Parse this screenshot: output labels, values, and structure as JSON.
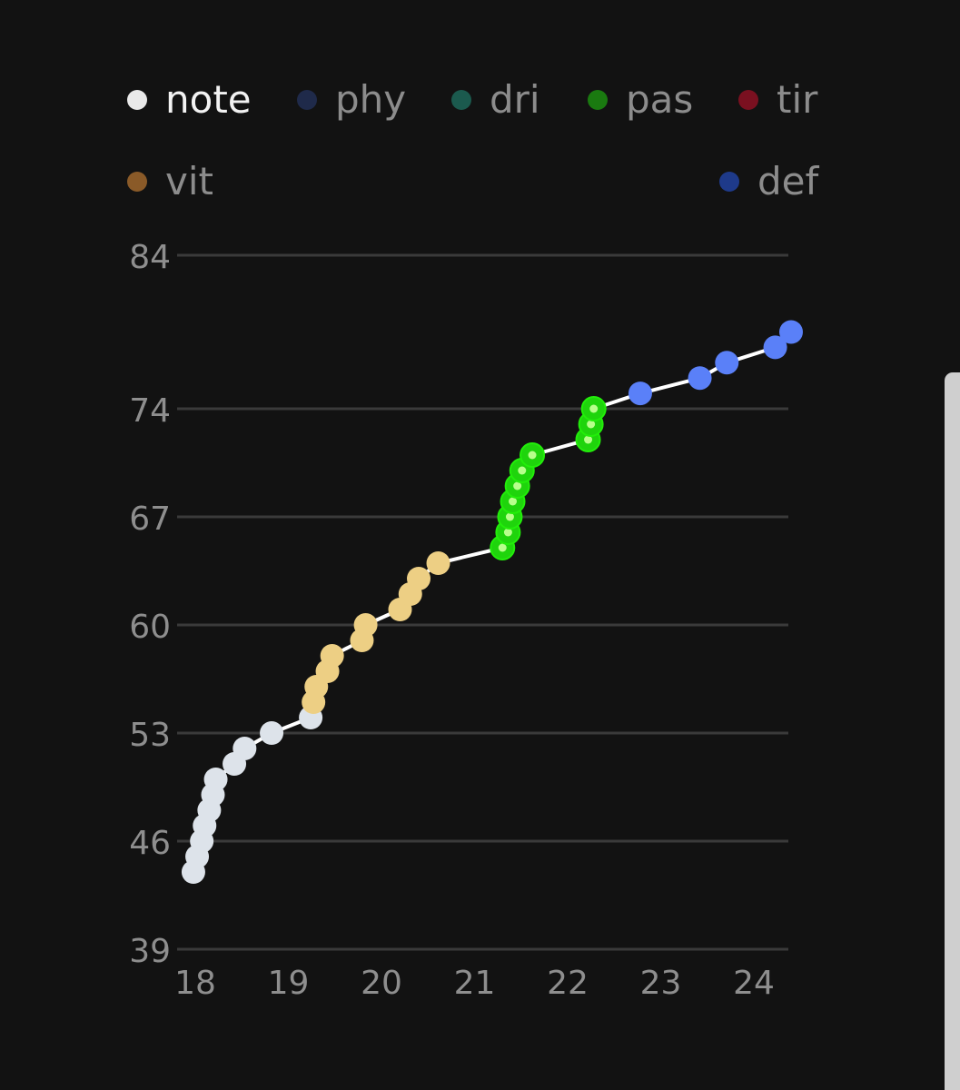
{
  "legend": {
    "items": [
      {
        "label": "note",
        "color": "#e9e9e9",
        "active": true
      },
      {
        "label": "phy",
        "color": "#1f2a4a",
        "active": false
      },
      {
        "label": "dri",
        "color": "#1b5a4e",
        "active": false
      },
      {
        "label": "pas",
        "color": "#1a7a10",
        "active": false
      },
      {
        "label": "tir",
        "color": "#7a1020",
        "active": false
      },
      {
        "label": "vit",
        "color": "#8a5a28",
        "active": false
      },
      {
        "label": "def",
        "color": "#1e3a8a",
        "active": false
      }
    ]
  },
  "chart_data": {
    "type": "line",
    "title": "",
    "xlabel": "",
    "ylabel": "",
    "x_ticks": [
      18,
      19,
      20,
      21,
      22,
      23,
      24
    ],
    "y_ticks": [
      39,
      46,
      53,
      60,
      67,
      74,
      84
    ],
    "xlim": [
      17.96,
      24.4
    ],
    "grid": true,
    "legend_position": "top",
    "line_color": "#ffffff",
    "series": [
      {
        "name": "note",
        "color": "#dde3ea",
        "style": "solid",
        "points": [
          {
            "x": 17.98,
            "y": 44
          },
          {
            "x": 18.02,
            "y": 45
          },
          {
            "x": 18.07,
            "y": 46
          },
          {
            "x": 18.1,
            "y": 47
          },
          {
            "x": 18.15,
            "y": 48
          },
          {
            "x": 18.19,
            "y": 49
          },
          {
            "x": 18.22,
            "y": 50
          },
          {
            "x": 18.42,
            "y": 51
          },
          {
            "x": 18.53,
            "y": 52
          },
          {
            "x": 18.82,
            "y": 53
          },
          {
            "x": 19.24,
            "y": 54
          }
        ]
      },
      {
        "name": "vit",
        "color": "#edcf84",
        "style": "solid",
        "points": [
          {
            "x": 19.27,
            "y": 55
          },
          {
            "x": 19.3,
            "y": 56
          },
          {
            "x": 19.42,
            "y": 57
          },
          {
            "x": 19.47,
            "y": 58
          },
          {
            "x": 19.79,
            "y": 59
          },
          {
            "x": 19.83,
            "y": 60
          },
          {
            "x": 20.2,
            "y": 61
          },
          {
            "x": 20.31,
            "y": 62
          },
          {
            "x": 20.4,
            "y": 63
          },
          {
            "x": 20.61,
            "y": 64
          }
        ]
      },
      {
        "name": "pas",
        "color": "#22ee0a",
        "style": "ringed",
        "points": [
          {
            "x": 21.3,
            "y": 65
          },
          {
            "x": 21.36,
            "y": 66
          },
          {
            "x": 21.38,
            "y": 67
          },
          {
            "x": 21.41,
            "y": 68
          },
          {
            "x": 21.46,
            "y": 69
          },
          {
            "x": 21.51,
            "y": 70
          },
          {
            "x": 21.62,
            "y": 71
          },
          {
            "x": 22.22,
            "y": 72
          },
          {
            "x": 22.25,
            "y": 73
          },
          {
            "x": 22.28,
            "y": 74
          }
        ]
      },
      {
        "name": "def",
        "color": "#5a80f8",
        "style": "solid",
        "points": [
          {
            "x": 22.78,
            "y": 75
          },
          {
            "x": 23.42,
            "y": 76
          },
          {
            "x": 23.71,
            "y": 77
          },
          {
            "x": 24.23,
            "y": 78
          },
          {
            "x": 24.4,
            "y": 79
          }
        ]
      }
    ]
  }
}
